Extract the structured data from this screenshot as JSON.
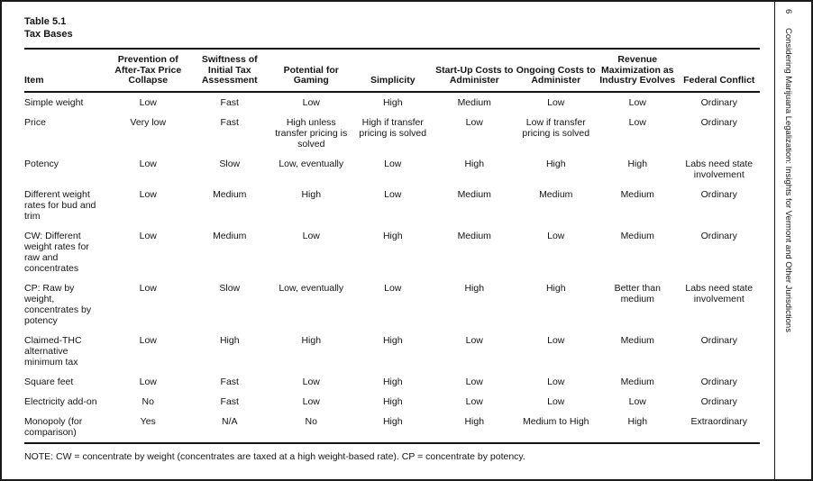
{
  "margin": {
    "page_number": "6",
    "running_title": "Considering Marijuana Legalization: Insights for Vermont and Other Jurisdictions"
  },
  "table": {
    "label": "Table 5.1",
    "title": "Tax Bases",
    "columns": [
      "Item",
      "Prevention of After-Tax Price Collapse",
      "Swiftness of Initial Tax Assessment",
      "Potential for Gaming",
      "Simplicity",
      "Start-Up Costs to Administer",
      "Ongoing Costs to Administer",
      "Revenue Maximization as Industry Evolves",
      "Federal Conflict"
    ],
    "rows": [
      [
        "Simple weight",
        "Low",
        "Fast",
        "Low",
        "High",
        "Medium",
        "Low",
        "Low",
        "Ordinary"
      ],
      [
        "Price",
        "Very low",
        "Fast",
        "High unless transfer pricing is solved",
        "High if transfer pricing is solved",
        "Low",
        "Low if transfer pricing is solved",
        "Low",
        "Ordinary"
      ],
      [
        "Potency",
        "Low",
        "Slow",
        "Low, eventually",
        "Low",
        "High",
        "High",
        "High",
        "Labs need state involvement"
      ],
      [
        "Different weight rates for bud and trim",
        "Low",
        "Medium",
        "High",
        "Low",
        "Medium",
        "Medium",
        "Medium",
        "Ordinary"
      ],
      [
        "CW: Different weight rates for raw and concentrates",
        "Low",
        "Medium",
        "Low",
        "High",
        "Medium",
        "Low",
        "Medium",
        "Ordinary"
      ],
      [
        "CP: Raw by weight, concentrates by potency",
        "Low",
        "Slow",
        "Low, eventually",
        "Low",
        "High",
        "High",
        "Better than medium",
        "Labs need state involvement"
      ],
      [
        "Claimed-THC alternative minimum tax",
        "Low",
        "High",
        "High",
        "High",
        "Low",
        "Low",
        "Medium",
        "Ordinary"
      ],
      [
        "Square feet",
        "Low",
        "Fast",
        "Low",
        "High",
        "Low",
        "Low",
        "Medium",
        "Ordinary"
      ],
      [
        "Electricity add-on",
        "No",
        "Fast",
        "Low",
        "High",
        "Low",
        "Low",
        "Low",
        "Ordinary"
      ],
      [
        "Monopoly (for comparison)",
        "Yes",
        "N/A",
        "No",
        "High",
        "High",
        "Medium to High",
        "High",
        "Extraordinary"
      ]
    ],
    "note": "NOTE: CW = concentrate by weight (concentrates are taxed at a high weight-based rate). CP = concentrate by potency."
  }
}
